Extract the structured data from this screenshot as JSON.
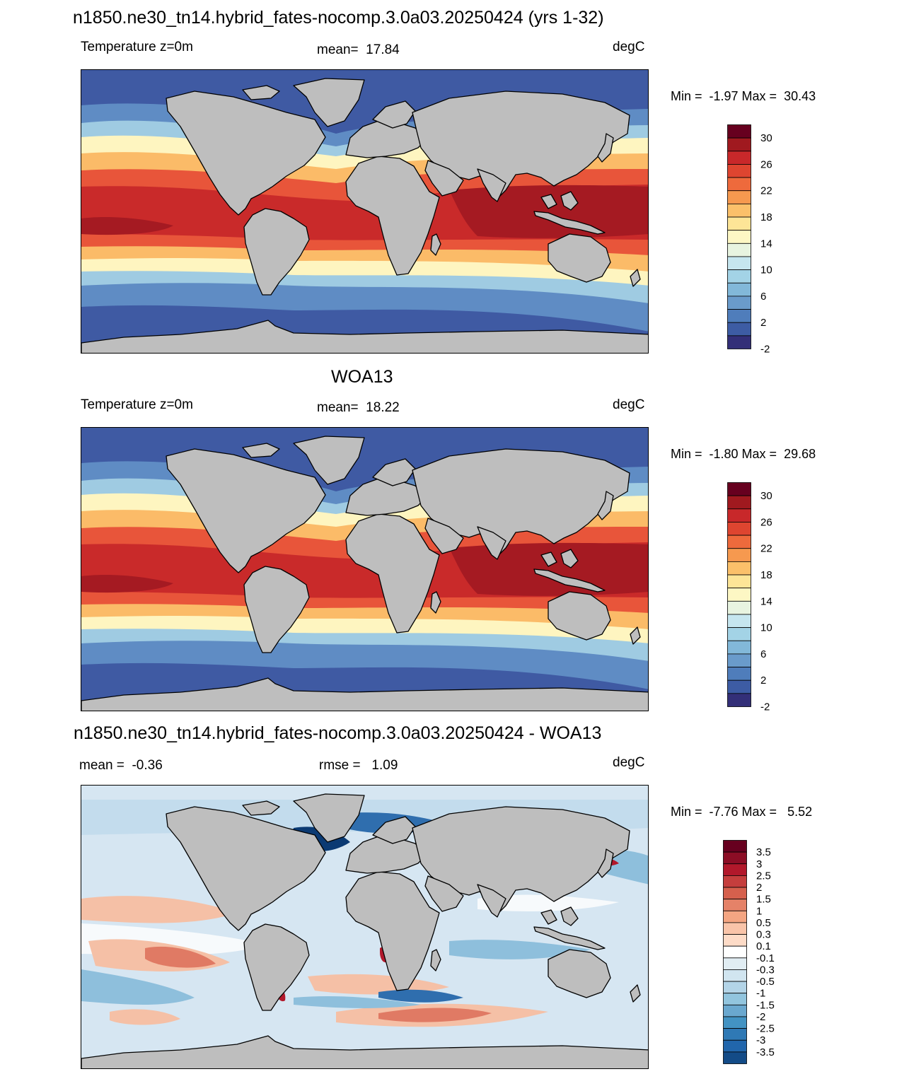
{
  "panels": [
    {
      "id": "model",
      "title": "n1850.ne30_tn14.hybrid_fates-nocomp.3.0a03.20250424 (yrs 1-32)",
      "left_label": "Temperature z=0m",
      "center_label": "mean=  17.84",
      "right_label": "degC",
      "minmax": "Min =  -1.97 Max =  30.43",
      "palette": "sst",
      "colorbar": {
        "ticks": [
          "30",
          "26",
          "22",
          "18",
          "14",
          "10",
          "6",
          "2",
          "-2"
        ],
        "colors": [
          "#67001f",
          "#a0191f",
          "#c8282a",
          "#de4530",
          "#ee6a3c",
          "#f6994f",
          "#fbc06a",
          "#fde597",
          "#fdf7c4",
          "#e8f4e0",
          "#c6e6ef",
          "#a3d3e6",
          "#82b8d9",
          "#6a9bcb",
          "#4f7dbb",
          "#3d5ca4",
          "#332f78"
        ]
      },
      "map_colors": {
        "polar": "#3f5aa3",
        "subpolar": "#5f8cc4",
        "cool": "#9fcbe2",
        "temperate": "#fef5c0",
        "warm_temperate": "#fbbb68",
        "subtropical": "#e8553a",
        "tropical": "#c92a2a",
        "warm_pool": "#a51a22",
        "land": "#bebebe"
      }
    },
    {
      "id": "obs",
      "title": "WOA13",
      "left_label": "Temperature z=0m",
      "center_label": "mean=  18.22",
      "right_label": "degC",
      "minmax": "Min =  -1.80 Max =  29.68",
      "palette": "sst",
      "colorbar": {
        "ticks": [
          "30",
          "26",
          "22",
          "18",
          "14",
          "10",
          "6",
          "2",
          "-2"
        ],
        "colors": [
          "#67001f",
          "#a0191f",
          "#c8282a",
          "#de4530",
          "#ee6a3c",
          "#f6994f",
          "#fbc06a",
          "#fde597",
          "#fdf7c4",
          "#e8f4e0",
          "#c6e6ef",
          "#a3d3e6",
          "#82b8d9",
          "#6a9bcb",
          "#4f7dbb",
          "#3d5ca4",
          "#332f78"
        ]
      },
      "map_colors": {
        "polar": "#3f5aa3",
        "subpolar": "#5f8cc4",
        "cool": "#9fcbe2",
        "temperate": "#fef5c0",
        "warm_temperate": "#fbbb68",
        "subtropical": "#e8553a",
        "tropical": "#c92a2a",
        "warm_pool": "#a51a22",
        "land": "#bebebe"
      }
    },
    {
      "id": "diff",
      "title": "n1850.ne30_tn14.hybrid_fates-nocomp.3.0a03.20250424 - WOA13",
      "left_label": "mean =  -0.36",
      "center_label": "rmse =   1.09",
      "right_label": "degC",
      "minmax": "Min =  -7.76 Max =   5.52",
      "palette": "diff",
      "colorbar": {
        "ticks": [
          "3.5",
          "3",
          "2.5",
          "2",
          "1.5",
          "1",
          "0.5",
          "0.3",
          "0.1",
          "-0.1",
          "-0.3",
          "-0.5",
          "-1",
          "-1.5",
          "-2",
          "-2.5",
          "-3",
          "-3.5"
        ],
        "colors": [
          "#67001f",
          "#8c0d25",
          "#b2182b",
          "#c53e3d",
          "#d6604d",
          "#e58268",
          "#f4a582",
          "#f9c4a9",
          "#fddbc7",
          "#ffffff",
          "#e1edf3",
          "#d1e5f0",
          "#b3d4e7",
          "#92c5de",
          "#6aa8cf",
          "#4393c3",
          "#2f79b5",
          "#2166ac",
          "#134b87"
        ]
      },
      "map_colors": {
        "background": "#d6e6f2",
        "light_blue": "#c3dced",
        "blue": "#8ebfdc",
        "dark_blue": "#2f6eae",
        "navy": "#0b3a73",
        "white": "#f7fafc",
        "pink": "#f5c0a6",
        "red": "#e07a64",
        "dark_red": "#b2182b",
        "land": "#bebebe"
      }
    }
  ]
}
